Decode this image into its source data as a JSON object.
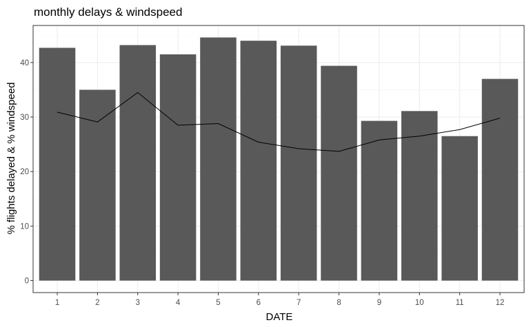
{
  "chart_data": {
    "type": "bar",
    "title": "monthly delays & windspeed",
    "xlabel": "DATE",
    "ylabel": "% flights delayed & % windspeed",
    "categories": [
      "1",
      "2",
      "3",
      "4",
      "5",
      "6",
      "7",
      "8",
      "9",
      "10",
      "11",
      "12"
    ],
    "series": [
      {
        "kind": "bar",
        "values": [
          42.7,
          35.0,
          43.2,
          41.5,
          44.6,
          44.0,
          43.1,
          39.4,
          29.3,
          31.1,
          26.5,
          37.0
        ]
      },
      {
        "kind": "line",
        "values": [
          30.9,
          29.1,
          34.5,
          28.5,
          28.8,
          25.4,
          24.2,
          23.7,
          25.8,
          26.5,
          27.7,
          29.8
        ]
      }
    ],
    "ylim": [
      -2.2,
      46.8
    ],
    "yticks": [
      0,
      10,
      20,
      30,
      40
    ],
    "grid": true,
    "legend": "none",
    "colors": {
      "bar": "#595959",
      "line": "#000000",
      "grid_major": "#ebebeb",
      "grid_minor": "#f5f5f5",
      "panel_border": "#333333"
    }
  }
}
